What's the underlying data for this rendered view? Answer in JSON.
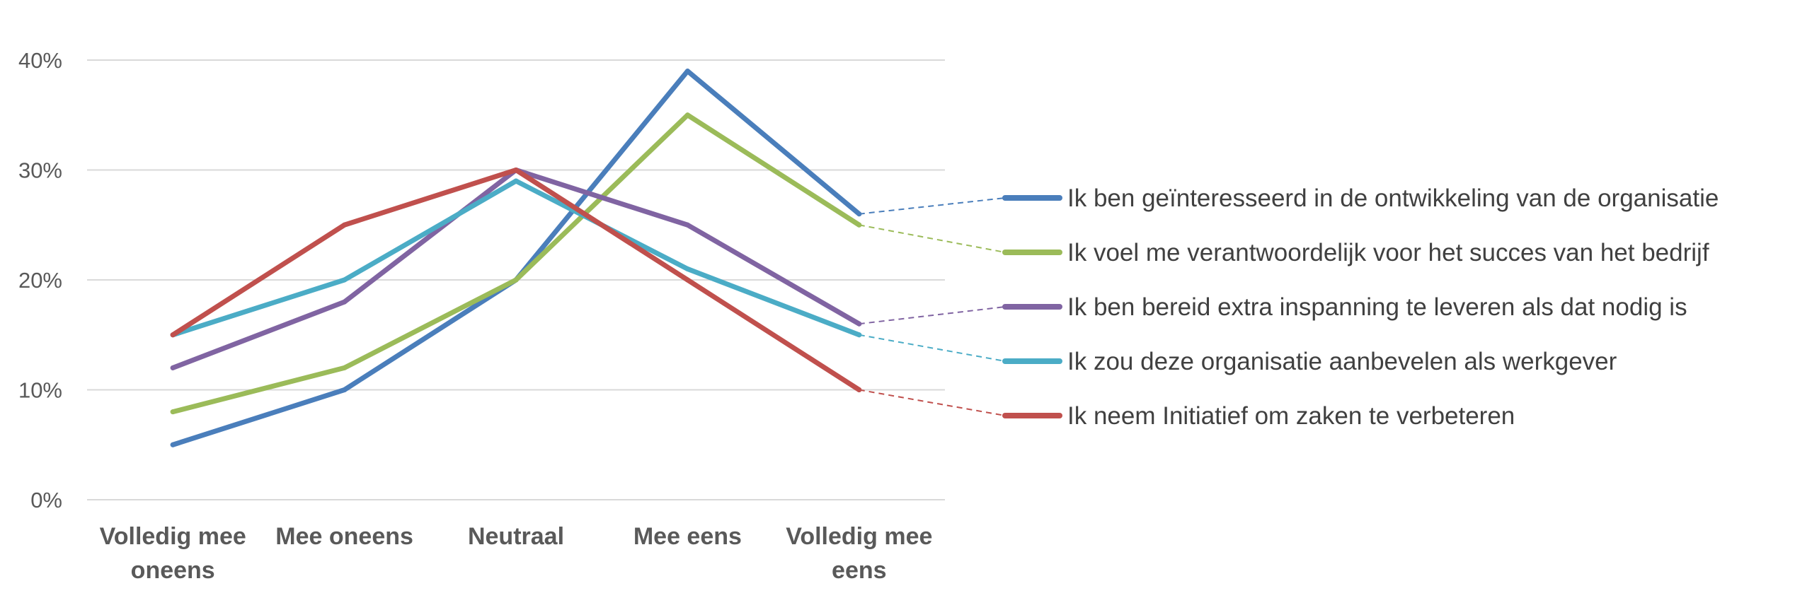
{
  "chart_data": {
    "type": "line",
    "title": "",
    "xlabel": "",
    "ylabel": "",
    "categories": [
      [
        "Volledig mee",
        "oneens"
      ],
      [
        "Mee oneens"
      ],
      [
        "Neutraal"
      ],
      [
        "Mee eens"
      ],
      [
        "Volledig mee",
        "eens"
      ]
    ],
    "y_ticks": [
      "0%",
      "10%",
      "20%",
      "30%",
      "40%"
    ],
    "ylim": [
      0,
      40
    ],
    "grid": true,
    "legend_position": "right",
    "series": [
      {
        "name": "Ik ben geïnteresseerd in de ontwikkeling van de organisatie",
        "color": "#4a7ebb",
        "values": [
          5,
          10,
          20,
          39,
          26
        ]
      },
      {
        "name": "Ik voel me verantwoordelijk voor het succes van het bedrijf",
        "color": "#9bbb59",
        "values": [
          8,
          12,
          20,
          35,
          25
        ]
      },
      {
        "name": "Ik ben bereid extra inspanning te leveren als dat nodig is",
        "color": "#8064a2",
        "values": [
          12,
          18,
          30,
          25,
          16
        ]
      },
      {
        "name": "Ik zou deze organisatie aanbevelen als werkgever",
        "color": "#4bacc6",
        "values": [
          15,
          20,
          29,
          21,
          15
        ]
      },
      {
        "name": "Ik neem Initiatief om zaken te verbeteren",
        "color": "#c0504d",
        "values": [
          15,
          25,
          30,
          20,
          10
        ]
      }
    ]
  }
}
